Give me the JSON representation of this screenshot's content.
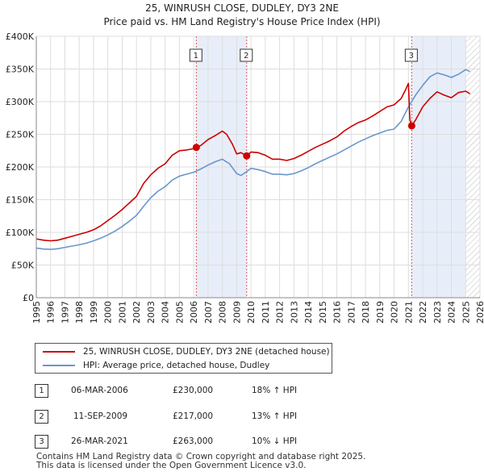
{
  "chart_data": {
    "type": "line",
    "title": "25, WINRUSH CLOSE, DUDLEY, DY3 2NE",
    "subtitle": "Price paid vs. HM Land Registry's House Price Index (HPI)",
    "xlabel": "",
    "ylabel": "",
    "xlim": [
      1995,
      2026
    ],
    "ylim": [
      0,
      400000
    ],
    "x_ticks": [
      "1995",
      "1996",
      "1997",
      "1998",
      "1999",
      "2000",
      "2001",
      "2002",
      "2003",
      "2004",
      "2005",
      "2006",
      "2007",
      "2008",
      "2009",
      "2010",
      "2011",
      "2012",
      "2013",
      "2014",
      "2015",
      "2016",
      "2017",
      "2018",
      "2019",
      "2020",
      "2021",
      "2022",
      "2023",
      "2024",
      "2025",
      "2026"
    ],
    "y_ticks": [
      {
        "value": 0,
        "label": "£0"
      },
      {
        "value": 50000,
        "label": "£50K"
      },
      {
        "value": 100000,
        "label": "£100K"
      },
      {
        "value": 150000,
        "label": "£150K"
      },
      {
        "value": 200000,
        "label": "£200K"
      },
      {
        "value": 250000,
        "label": "£250K"
      },
      {
        "value": 300000,
        "label": "£300K"
      },
      {
        "value": 350000,
        "label": "£350K"
      },
      {
        "value": 400000,
        "label": "£400K"
      }
    ],
    "shaded_periods": [
      [
        2006.18,
        2009.7
      ],
      [
        2021.23,
        2025.0
      ]
    ],
    "future_hatch_from": 2025.0,
    "series": [
      {
        "name": "25, WINRUSH CLOSE, DUDLEY, DY3 2NE (detached house)",
        "color": "#cc0000",
        "x": [
          1995.0,
          1995.5,
          1996.0,
          1996.5,
          1997.0,
          1997.5,
          1998.0,
          1998.5,
          1999.0,
          1999.5,
          2000.0,
          2000.5,
          2001.0,
          2001.5,
          2002.0,
          2002.5,
          2003.0,
          2003.5,
          2004.0,
          2004.5,
          2005.0,
          2005.5,
          2006.0,
          2006.18,
          2006.5,
          2007.0,
          2007.5,
          2008.0,
          2008.3,
          2008.7,
          2009.0,
          2009.3,
          2009.7,
          2010.0,
          2010.5,
          2011.0,
          2011.5,
          2012.0,
          2012.5,
          2013.0,
          2013.5,
          2014.0,
          2014.5,
          2015.0,
          2015.5,
          2016.0,
          2016.5,
          2017.0,
          2017.5,
          2018.0,
          2018.5,
          2019.0,
          2019.5,
          2020.0,
          2020.5,
          2020.8,
          2021.0,
          2021.1,
          2021.23,
          2021.5,
          2022.0,
          2022.5,
          2023.0,
          2023.5,
          2024.0,
          2024.5,
          2025.0,
          2025.3
        ],
        "y": [
          90000,
          88000,
          87000,
          88000,
          91000,
          94000,
          97000,
          100000,
          104000,
          110000,
          118000,
          126000,
          135000,
          145000,
          155000,
          175000,
          188000,
          198000,
          205000,
          218000,
          225000,
          226000,
          228000,
          230000,
          233000,
          242000,
          248000,
          255000,
          250000,
          235000,
          220000,
          222000,
          217000,
          223000,
          222000,
          218000,
          212000,
          212000,
          210000,
          213000,
          218000,
          224000,
          230000,
          235000,
          240000,
          246000,
          255000,
          262000,
          268000,
          272000,
          278000,
          285000,
          292000,
          295000,
          305000,
          318000,
          328000,
          272000,
          263000,
          272000,
          292000,
          305000,
          315000,
          310000,
          306000,
          314000,
          316000,
          312000
        ]
      },
      {
        "name": "HPI: Average price, detached house, Dudley",
        "color": "#6a96cc",
        "x": [
          1995.0,
          1995.5,
          1996.0,
          1996.5,
          1997.0,
          1997.5,
          1998.0,
          1998.5,
          1999.0,
          1999.5,
          2000.0,
          2000.5,
          2001.0,
          2001.5,
          2002.0,
          2002.5,
          2003.0,
          2003.5,
          2004.0,
          2004.5,
          2005.0,
          2005.5,
          2006.0,
          2006.5,
          2007.0,
          2007.5,
          2008.0,
          2008.5,
          2009.0,
          2009.3,
          2009.7,
          2010.0,
          2010.5,
          2011.0,
          2011.5,
          2012.0,
          2012.5,
          2013.0,
          2013.5,
          2014.0,
          2014.5,
          2015.0,
          2015.5,
          2016.0,
          2016.5,
          2017.0,
          2017.5,
          2018.0,
          2018.5,
          2019.0,
          2019.5,
          2020.0,
          2020.5,
          2021.0,
          2021.5,
          2022.0,
          2022.5,
          2023.0,
          2023.5,
          2024.0,
          2024.5,
          2025.0,
          2025.3
        ],
        "y": [
          76000,
          74500,
          74000,
          75000,
          77000,
          79000,
          81000,
          83500,
          87000,
          91000,
          96000,
          102000,
          109000,
          117000,
          126000,
          140000,
          153000,
          163000,
          170000,
          180000,
          186000,
          189000,
          192000,
          197000,
          203000,
          208000,
          212000,
          205000,
          190000,
          187000,
          193000,
          198000,
          196000,
          193000,
          189000,
          189000,
          188000,
          190000,
          194000,
          199000,
          205000,
          210000,
          215000,
          220000,
          226000,
          232000,
          238000,
          243000,
          248000,
          252000,
          256000,
          258000,
          270000,
          292000,
          310000,
          325000,
          338000,
          344000,
          341000,
          337000,
          342000,
          349000,
          346000
        ]
      }
    ],
    "sales": [
      {
        "n": "1",
        "x": 2006.18,
        "y": 230000
      },
      {
        "n": "2",
        "x": 2009.7,
        "y": 217000
      },
      {
        "n": "3",
        "x": 2021.23,
        "y": 263000
      }
    ]
  },
  "legend": {
    "property_label": "25, WINRUSH CLOSE, DUDLEY, DY3 2NE (detached house)",
    "hpi_label": "HPI: Average price, detached house, Dudley"
  },
  "transactions": [
    {
      "n": "1",
      "date": "06-MAR-2006",
      "price": "£230,000",
      "hpi": "18% ↑ HPI"
    },
    {
      "n": "2",
      "date": "11-SEP-2009",
      "price": "£217,000",
      "hpi": "13% ↑ HPI"
    },
    {
      "n": "3",
      "date": "26-MAR-2021",
      "price": "£263,000",
      "hpi": "10% ↓ HPI"
    }
  ],
  "footer": {
    "line1": "Contains HM Land Registry data © Crown copyright and database right 2025.",
    "line2": "This data is licensed under the Open Government Licence v3.0."
  }
}
